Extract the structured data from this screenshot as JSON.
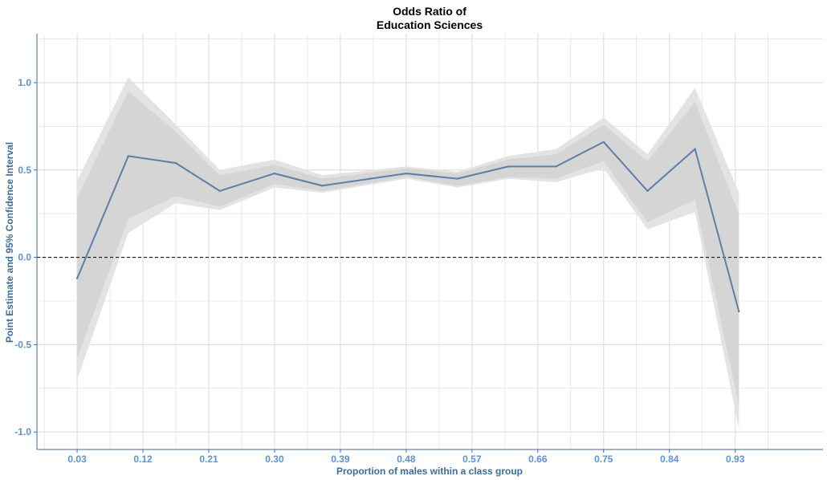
{
  "chart_data": {
    "type": "line",
    "title": "Odds Ratio of",
    "subtitle": "Education Sciences",
    "xlabel": "Proportion of males within a class group",
    "ylabel": "Point Estimate and 95% Confidence Interval",
    "xlim": [
      -0.025,
      1.05
    ],
    "ylim": [
      -1.1,
      1.28
    ],
    "x_ticks": [
      0.03,
      0.12,
      0.21,
      0.3,
      0.39,
      0.48,
      0.57,
      0.66,
      0.75,
      0.84,
      0.93
    ],
    "x_tick_labels": [
      "0.03",
      "0.12",
      "0.21",
      "0.30",
      "0.39",
      "0.48",
      "0.57",
      "0.66",
      "0.75",
      "0.84",
      "0.93"
    ],
    "y_ticks": [
      -1.0,
      -0.5,
      0.0,
      0.5,
      1.0
    ],
    "y_tick_labels": [
      "-1.0",
      "-0.5",
      "0.0",
      "0.5",
      "1.0"
    ],
    "grid": true,
    "reference_line": 0.0,
    "x": [
      0.03,
      0.1,
      0.165,
      0.225,
      0.3,
      0.365,
      0.48,
      0.55,
      0.62,
      0.685,
      0.75,
      0.81,
      0.875,
      0.935
    ],
    "series": [
      {
        "values": [
          -0.12,
          0.58,
          0.54,
          0.38,
          0.48,
          0.41,
          0.48,
          0.45,
          0.52,
          0.52,
          0.66,
          0.38,
          0.62,
          -0.31
        ]
      }
    ],
    "bands": [
      {
        "lower": [
          -0.7,
          0.14,
          0.31,
          0.27,
          0.4,
          0.37,
          0.45,
          0.4,
          0.45,
          0.43,
          0.51,
          0.16,
          0.26,
          -0.98
        ],
        "upper": [
          0.44,
          1.03,
          0.76,
          0.5,
          0.56,
          0.47,
          0.52,
          0.49,
          0.58,
          0.62,
          0.8,
          0.59,
          0.97,
          0.37
        ]
      },
      {
        "lower": [
          -0.58,
          0.22,
          0.35,
          0.29,
          0.42,
          0.38,
          0.46,
          0.41,
          0.46,
          0.45,
          0.55,
          0.2,
          0.33,
          -0.85
        ],
        "upper": [
          0.34,
          0.95,
          0.72,
          0.47,
          0.53,
          0.45,
          0.51,
          0.48,
          0.56,
          0.59,
          0.76,
          0.55,
          0.89,
          0.25
        ]
      }
    ],
    "colors": {
      "line": "#5b7fa6",
      "band_outer": "#e3e3e3",
      "band_inner": "#d5d5d5",
      "grid": "#dcdcdc",
      "axis": "#3c6e9b",
      "tick_text": "#5b93d6",
      "axis_title": "#3c6e9b",
      "reference_line": "#000000"
    }
  }
}
